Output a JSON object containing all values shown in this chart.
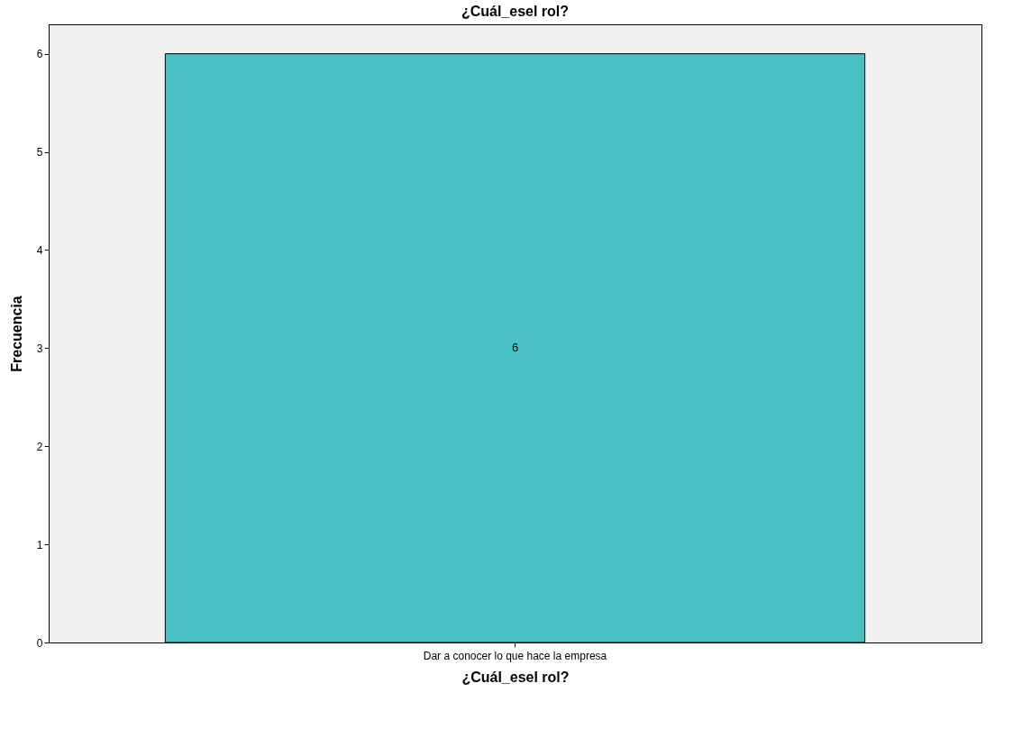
{
  "chart_data": {
    "type": "bar",
    "title": "¿Cuál_esel rol?",
    "xlabel": "¿Cuál_esel rol?",
    "ylabel": "Frecuencia",
    "categories": [
      "Dar a conocer lo que hace la empresa"
    ],
    "values": [
      6
    ],
    "color": "#48c0c4",
    "ylim": [
      0,
      6.3
    ],
    "yticks": [
      0,
      1,
      2,
      3,
      4,
      5,
      6
    ],
    "grid": false,
    "data_labels": true
  }
}
